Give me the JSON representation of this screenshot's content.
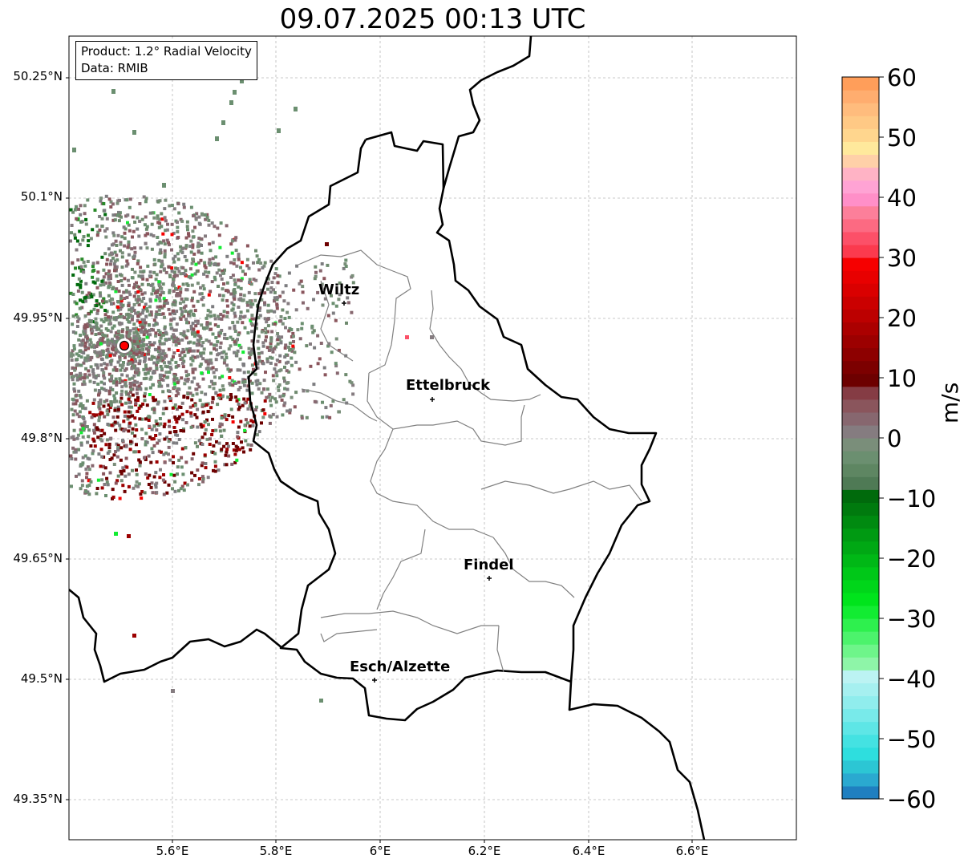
{
  "title": "09.07.2025 00:13 UTC",
  "info": {
    "product": "Product: 1.2° Radial Velocity",
    "data": "Data: RMIB"
  },
  "axes": {
    "lat_labels": [
      "50.25°N",
      "50.1°N",
      "49.95°N",
      "49.8°N",
      "49.65°N",
      "49.5°N",
      "49.35°N"
    ],
    "lon_labels": [
      "5.6°E",
      "5.8°E",
      "6°E",
      "6.2°E",
      "6.4°E",
      "6.6°E"
    ]
  },
  "cities": [
    {
      "name": "Wiltz"
    },
    {
      "name": "Ettelbruck"
    },
    {
      "name": "Findel"
    },
    {
      "name": "Esch/Alzette"
    }
  ],
  "colorbar": {
    "unit": "m/s",
    "ticks": [
      "60",
      "50",
      "40",
      "30",
      "20",
      "10",
      "0",
      "−10",
      "−20",
      "−30",
      "−40",
      "−50",
      "−60"
    ],
    "range": [
      -60,
      60
    ],
    "colors": [
      "#1f7fc0",
      "#2aa9d0",
      "#2cc6d4",
      "#2edede",
      "#44e2e2",
      "#5ee6e6",
      "#78eaea",
      "#90eded",
      "#a6f0f0",
      "#bcf3f3",
      "#8ef5a8",
      "#6ef58a",
      "#4cf36c",
      "#2ef04e",
      "#12ec32",
      "#00e41c",
      "#00d61a",
      "#00c818",
      "#00b816",
      "#00a814",
      "#009a12",
      "#008a10",
      "#007a0e",
      "#006a0c",
      "#4f7a55",
      "#5e8662",
      "#6b8f70",
      "#7a8e7a",
      "#857c80",
      "#87676f",
      "#8a555c",
      "#853c44",
      "#6d0000",
      "#7c0000",
      "#8d0000",
      "#9c0000",
      "#ab0000",
      "#bc0000",
      "#cb0000",
      "#da0000",
      "#e80000",
      "#f60000",
      "#fb3a4e",
      "#fc5068",
      "#fc6a82",
      "#fc7f9a",
      "#ff8fc8",
      "#ffa3d4",
      "#ffb3c5",
      "#ffd0a8",
      "#ffe99c",
      "#ffd68e",
      "#ffc985",
      "#ffbc7d",
      "#ffad6f",
      "#ff9e5a"
    ]
  }
}
